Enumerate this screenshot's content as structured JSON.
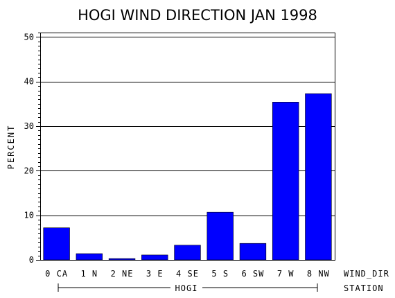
{
  "chart_data": {
    "type": "bar",
    "title": "HOGI WIND DIRECTION JAN 1998",
    "ylabel": "PERCENT",
    "xlabel": "WIND_DIR",
    "group_label_name": "STATION",
    "group_label": "HOGI",
    "categories": [
      "0 CA",
      "1 N",
      "2 NE",
      "3 E",
      "4 SE",
      "5 S",
      "6 SW",
      "7 W",
      "8 NW"
    ],
    "values": [
      7.2,
      1.4,
      0.3,
      1.1,
      3.3,
      10.7,
      3.7,
      35.4,
      37.3
    ],
    "ylim": [
      0,
      51
    ],
    "yticks": [
      0,
      10,
      20,
      30,
      40,
      50
    ],
    "grid": true,
    "legend": "none",
    "bar_color": "#0000ff"
  }
}
